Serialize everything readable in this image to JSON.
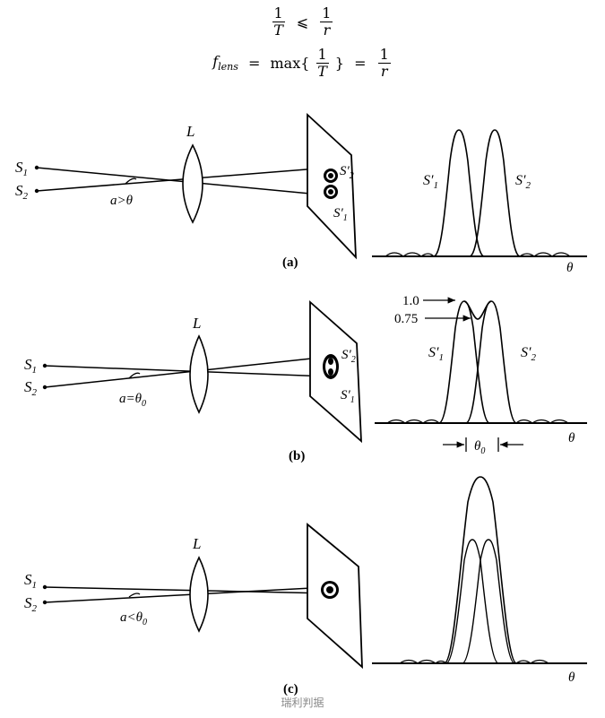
{
  "formula1": {
    "lhs_num": "1",
    "lhs_den": "T",
    "relation": "⩽",
    "rhs_num": "1",
    "rhs_den": "r"
  },
  "formula2": {
    "lhs": "f",
    "lhs_sub": "lens",
    "eq1": "=",
    "func": "max{",
    "arg_num": "1",
    "arg_den": "T",
    "close": "}",
    "eq2": "=",
    "rhs_num": "1",
    "rhs_den": "r"
  },
  "panels": [
    {
      "id": "a",
      "caption": "(a)",
      "lens_label": "L",
      "source1": "S",
      "source1_sub": "1",
      "source2": "S",
      "source2_sub": "2",
      "angle_label": "a>θ",
      "image1": "S′",
      "image1_sub": "1",
      "image2": "S′",
      "image2_sub": "2",
      "axis_label": "θ",
      "curve1_label": "S′",
      "curve1_sub": "1",
      "curve2_label": "S′",
      "curve2_sub": "2"
    },
    {
      "id": "b",
      "caption": "(b)",
      "lens_label": "L",
      "source1": "S",
      "source1_sub": "1",
      "source2": "S",
      "source2_sub": "2",
      "angle_label": "a=θ",
      "angle_sub": "0",
      "image1": "S′",
      "image1_sub": "1",
      "image2": "S′",
      "image2_sub": "2",
      "axis_label": "θ",
      "curve1_label": "S′",
      "curve1_sub": "1",
      "curve2_label": "S′",
      "curve2_sub": "2",
      "level_high": "1.0",
      "level_low": "0.75",
      "separation_label": "θ",
      "separation_sub": "0"
    },
    {
      "id": "c",
      "caption": "(c)",
      "lens_label": "L",
      "source1": "S",
      "source1_sub": "1",
      "source2": "S",
      "source2_sub": "2",
      "angle_label": "a<θ",
      "angle_sub": "0",
      "axis_label": "θ"
    }
  ],
  "watermark": "瑞利判据"
}
